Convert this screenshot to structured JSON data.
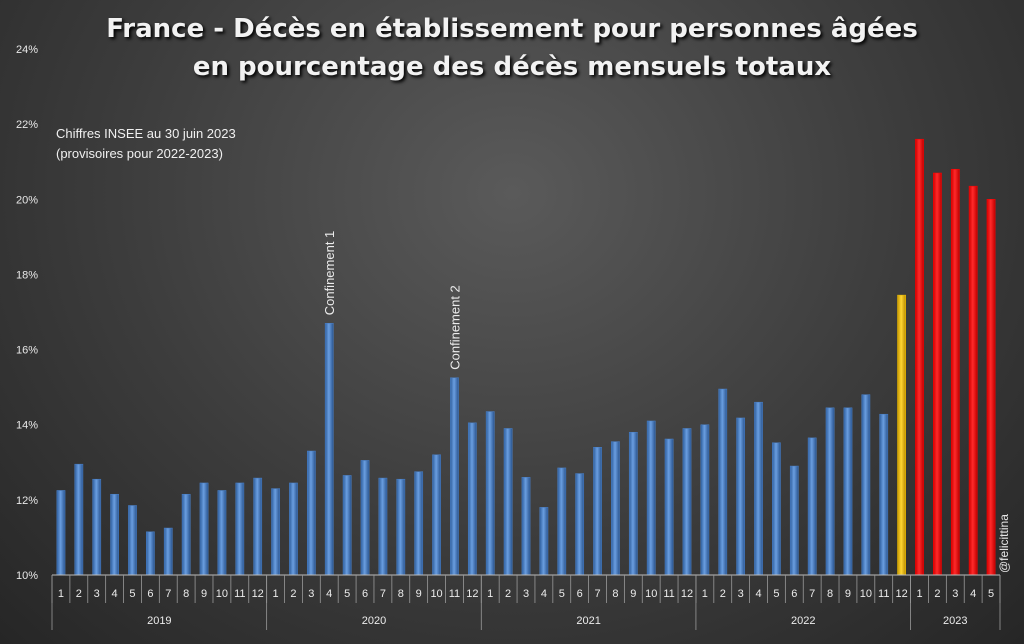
{
  "title": {
    "line1": "France - Décès en établissement pour personnes âgées",
    "line2": "en pourcentage des décès mensuels totaux"
  },
  "note": {
    "line1": "Chiffres INSEE au 30 juin 2023",
    "line2": "(provisoires pour 2022-2023)"
  },
  "credit": "@felicittina",
  "colors": {
    "default": "#4a80c8",
    "highlight": "#f0c000",
    "recent": "#ff0000"
  },
  "chart_data": {
    "type": "bar",
    "ylim": [
      0.1,
      0.24
    ],
    "yticks": [
      "10%",
      "12%",
      "14%",
      "16%",
      "18%",
      "20%",
      "22%",
      "24%"
    ],
    "years": [
      {
        "label": "2019",
        "months": 12
      },
      {
        "label": "2020",
        "months": 12
      },
      {
        "label": "2021",
        "months": 12
      },
      {
        "label": "2022",
        "months": 12
      },
      {
        "label": "2023",
        "months": 5
      }
    ],
    "categories": [
      "1",
      "2",
      "3",
      "4",
      "5",
      "6",
      "7",
      "8",
      "9",
      "10",
      "11",
      "12",
      "1",
      "2",
      "3",
      "4",
      "5",
      "6",
      "7",
      "8",
      "9",
      "10",
      "11",
      "12",
      "1",
      "2",
      "3",
      "4",
      "5",
      "6",
      "7",
      "8",
      "9",
      "10",
      "11",
      "12",
      "1",
      "2",
      "3",
      "4",
      "5",
      "6",
      "7",
      "8",
      "9",
      "10",
      "11",
      "12",
      "1",
      "2",
      "3",
      "4",
      "5"
    ],
    "values": [
      0.1225,
      0.1295,
      0.1255,
      0.1215,
      0.1185,
      0.1115,
      0.1125,
      0.1215,
      0.1245,
      0.1225,
      0.1245,
      0.1258,
      0.123,
      0.1245,
      0.133,
      0.167,
      0.1265,
      0.1305,
      0.1258,
      0.1255,
      0.1275,
      0.132,
      0.1525,
      0.1405,
      0.1435,
      0.139,
      0.126,
      0.118,
      0.1285,
      0.127,
      0.134,
      0.1355,
      0.138,
      0.141,
      0.1362,
      0.139,
      0.14,
      0.1495,
      0.1418,
      0.146,
      0.1352,
      0.129,
      0.1365,
      0.1445,
      0.1445,
      0.148,
      0.1428,
      0.1745,
      0.216,
      0.207,
      0.208,
      0.2035,
      0.2
    ],
    "bar_colors": [
      "default",
      "default",
      "default",
      "default",
      "default",
      "default",
      "default",
      "default",
      "default",
      "default",
      "default",
      "default",
      "default",
      "default",
      "default",
      "default",
      "default",
      "default",
      "default",
      "default",
      "default",
      "default",
      "default",
      "default",
      "default",
      "default",
      "default",
      "default",
      "default",
      "default",
      "default",
      "default",
      "default",
      "default",
      "default",
      "default",
      "default",
      "default",
      "default",
      "default",
      "default",
      "default",
      "default",
      "default",
      "default",
      "default",
      "default",
      "highlight",
      "recent",
      "recent",
      "recent",
      "recent",
      "recent"
    ],
    "annotations": [
      {
        "label": "Confinement 1",
        "index": 15
      },
      {
        "label": "Confinement 2",
        "index": 22
      }
    ]
  }
}
